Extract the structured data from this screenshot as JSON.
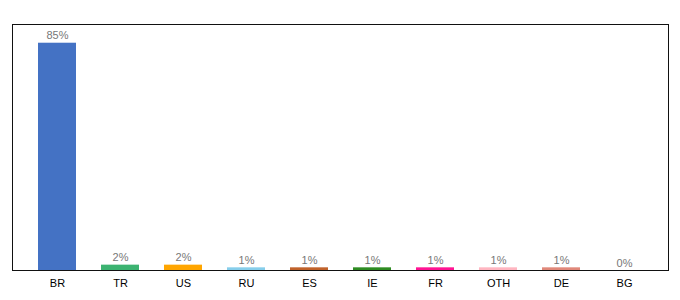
{
  "chart_data": {
    "type": "bar",
    "categories": [
      "BR",
      "TR",
      "US",
      "RU",
      "ES",
      "IE",
      "FR",
      "OTH",
      "DE",
      "BG"
    ],
    "values": [
      85,
      2,
      2,
      1,
      1,
      1,
      1,
      1,
      1,
      0
    ],
    "value_labels": [
      "85%",
      "2%",
      "2%",
      "1%",
      "1%",
      "1%",
      "1%",
      "1%",
      "1%",
      "0%"
    ],
    "colors": [
      "#4472C4",
      "#3CB371",
      "#FFA500",
      "#87CEEB",
      "#C0622B",
      "#2E8B22",
      "#FF1493",
      "#FFB6C1",
      "#E0887A",
      "#C0C0C0"
    ],
    "ylim": [
      0,
      92
    ],
    "data_labels": true,
    "tick_labels": "x"
  }
}
